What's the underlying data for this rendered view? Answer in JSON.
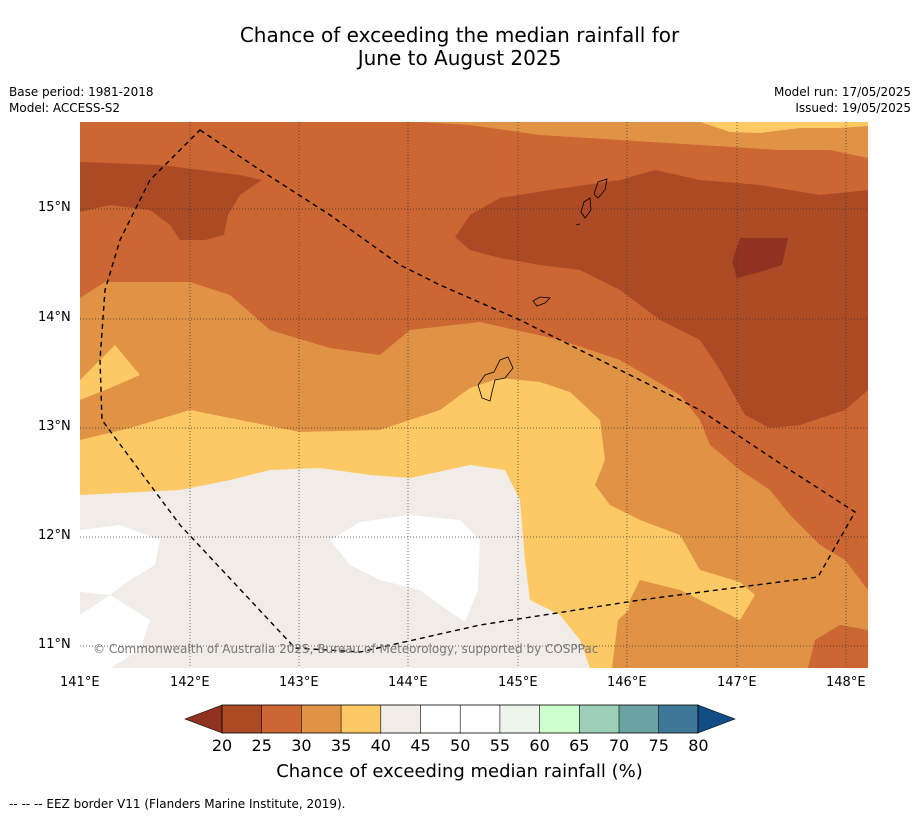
{
  "title_line1": "Chance of exceeding the median rainfall for",
  "title_line2": "June to August 2025",
  "meta_left": {
    "base_period": "Base period: 1981-2018",
    "model": "Model: ACCESS-S2"
  },
  "meta_right": {
    "model_run": "Model run: 17/05/2025",
    "issued": "Issued: 19/05/2025"
  },
  "map": {
    "lon_ticks": [
      "141°E",
      "142°E",
      "143°E",
      "144°E",
      "145°E",
      "146°E",
      "147°E",
      "148°E"
    ],
    "lat_ticks": [
      "15°N",
      "14°N",
      "13°N",
      "12°N",
      "11°N"
    ],
    "copyright": "© Commonwealth of Australia 2025, Bureau of Meteorology, supported by COSPPac",
    "legend_line": "EEZ border"
  },
  "colorbar": {
    "labels": [
      "20",
      "25",
      "30",
      "35",
      "40",
      "45",
      "50",
      "55",
      "60",
      "65",
      "70",
      "75",
      "80"
    ],
    "colors": [
      "#8f3220",
      "#ad4a26",
      "#cc6633",
      "#e09345",
      "#fdc965",
      "#f1ece7",
      "#ffffff",
      "#ffffff",
      "#eef6ec",
      "#ccffcc",
      "#9ccfb5",
      "#6ba3a5",
      "#3e7898",
      "#134d86"
    ],
    "title": "Chance of exceeding median rainfall (%)"
  },
  "footnote": "--  --  -- EEZ border V11 (Flanders Marine Institute, 2019)."
}
